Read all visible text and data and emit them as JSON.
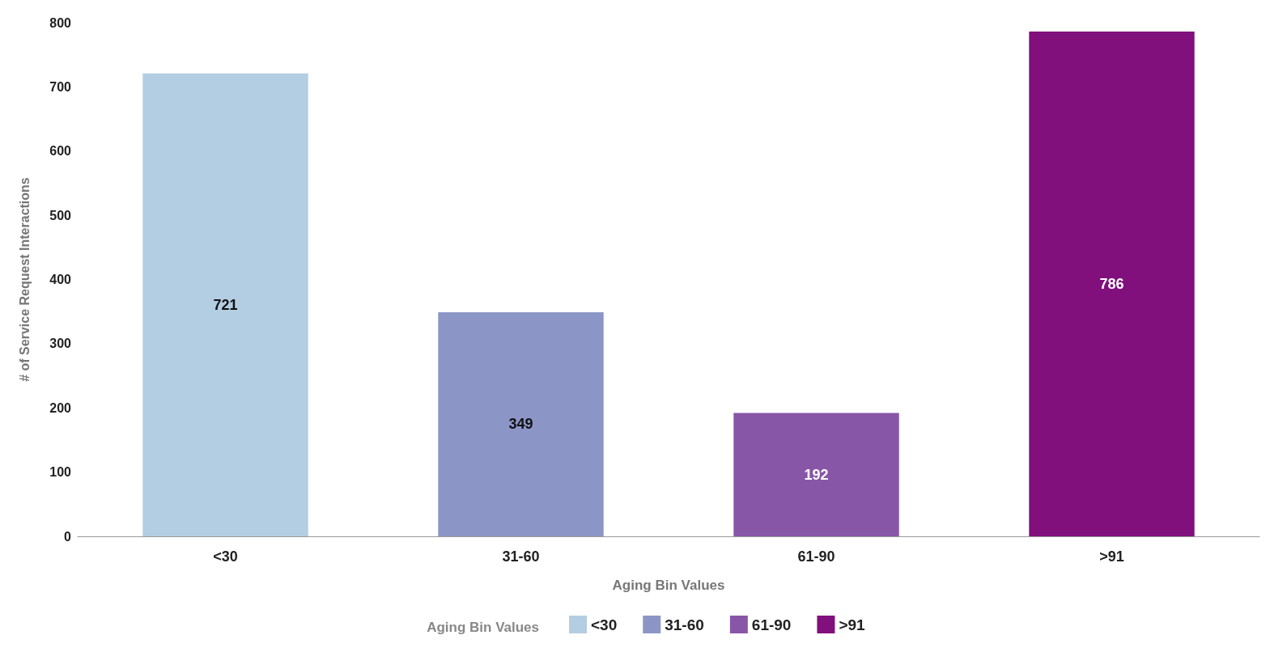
{
  "chart_data": {
    "type": "bar",
    "xlabel": "Aging Bin Values",
    "ylabel": "# of Service Request Interactions",
    "legend_title": "Aging Bin Values",
    "categories": [
      "<30",
      "31-60",
      "61-90",
      ">91"
    ],
    "series": [
      {
        "name": "<30",
        "color": "#b3cde3",
        "values": [
          721,
          null,
          null,
          null
        ]
      },
      {
        "name": "31-60",
        "color": "#8c96c6",
        "values": [
          null,
          349,
          null,
          null
        ]
      },
      {
        "name": "61-90",
        "color": "#8856a7",
        "values": [
          null,
          null,
          192,
          null
        ]
      },
      {
        "name": ">91",
        "color": "#810f7c",
        "values": [
          null,
          null,
          null,
          786
        ]
      }
    ],
    "ylim": [
      0,
      800
    ],
    "yticks": [
      0,
      100,
      200,
      300,
      400,
      500,
      600,
      700,
      800
    ],
    "grid": false,
    "legend": "bottom",
    "data_labels": true
  }
}
